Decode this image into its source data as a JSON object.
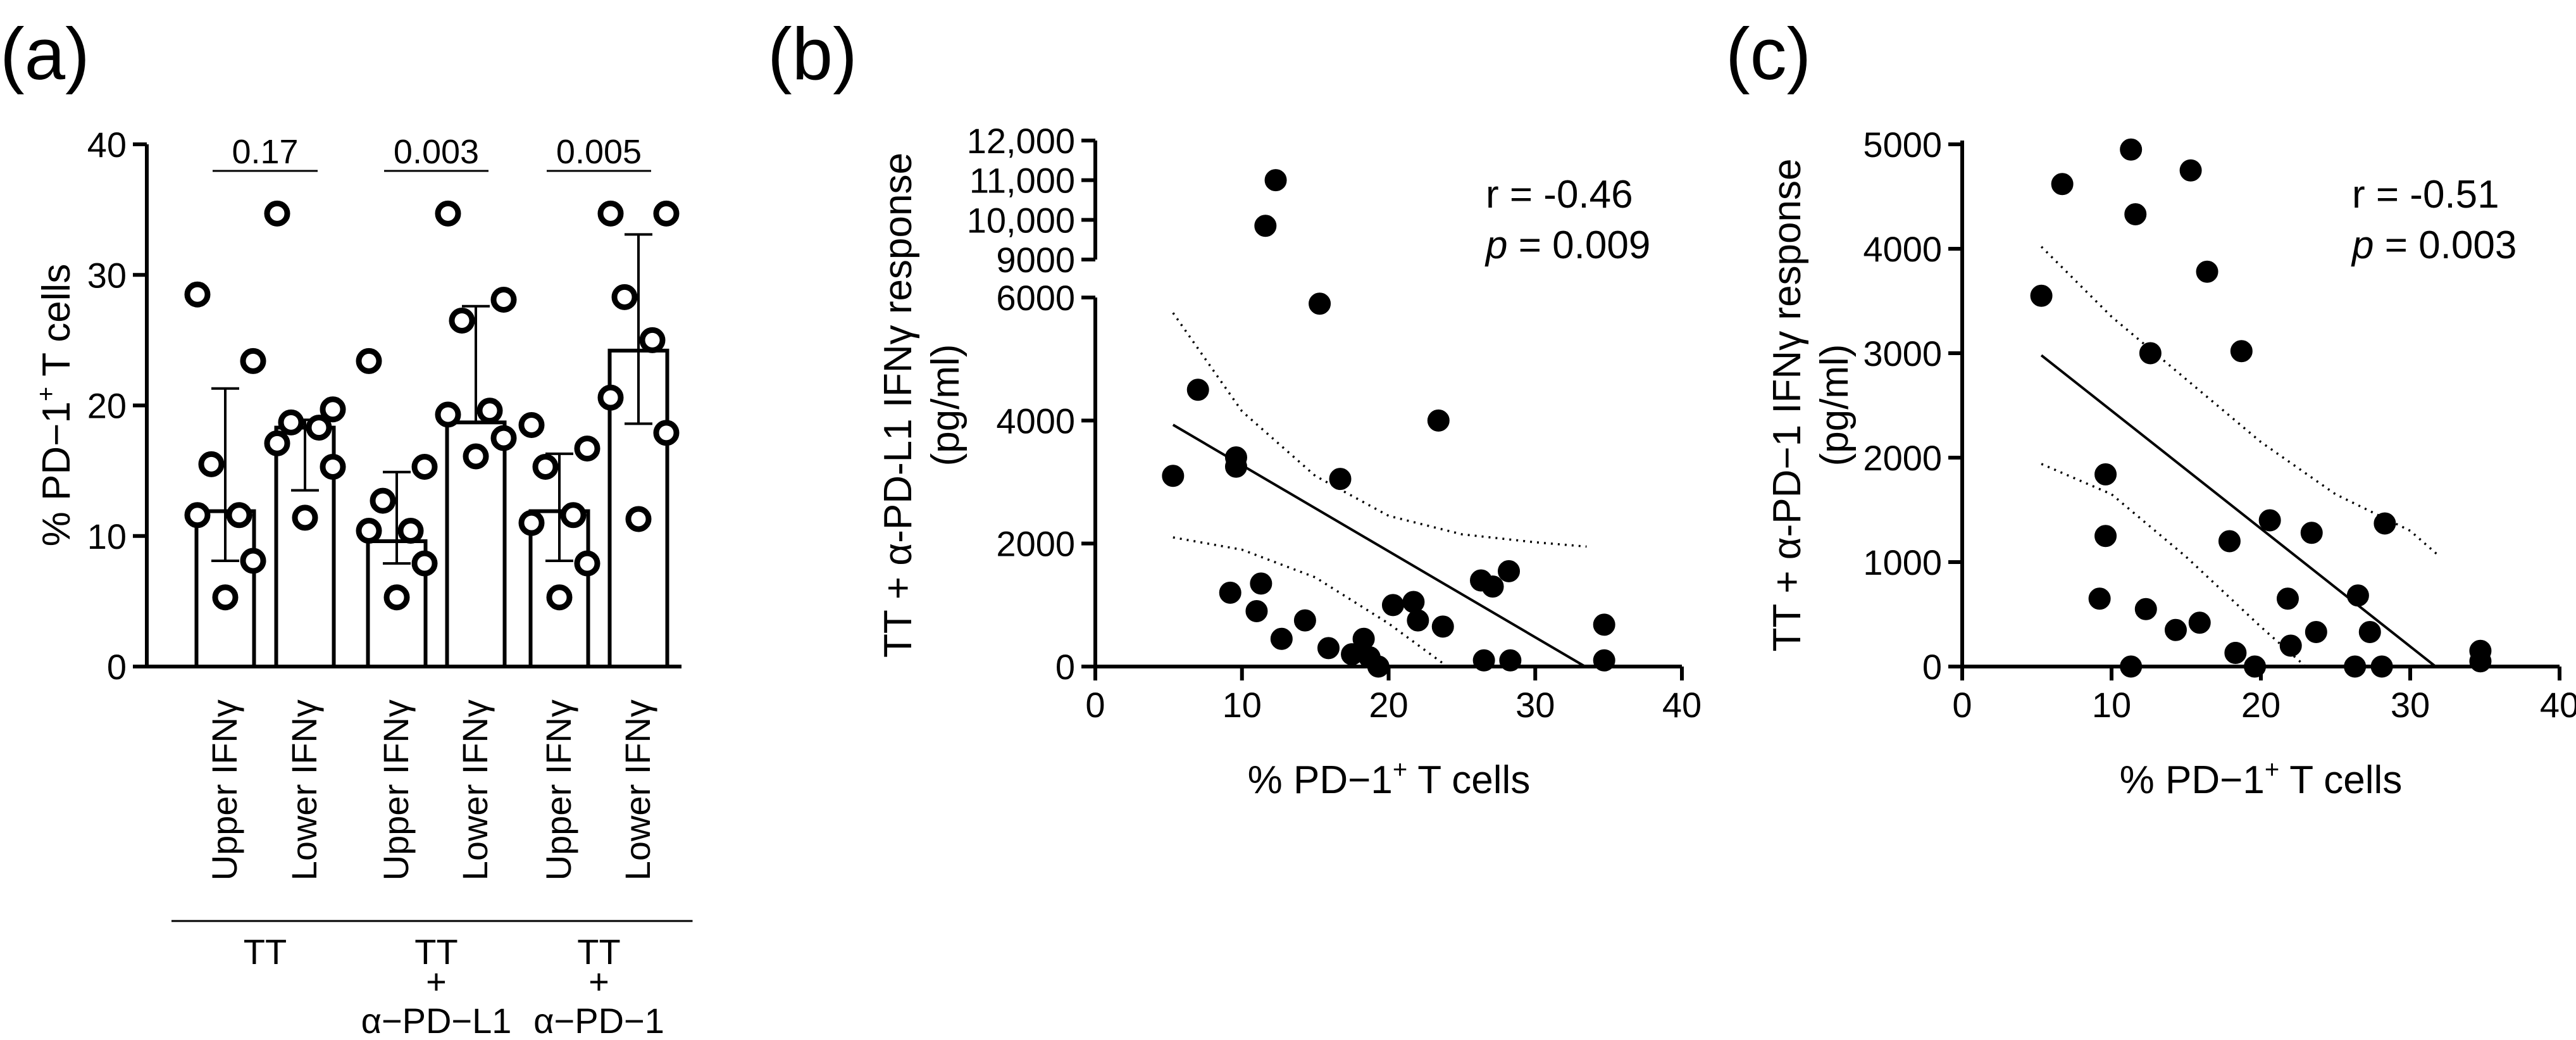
{
  "chart_data": [
    {
      "panel": "(a)",
      "type": "bar",
      "ylabel_pre": "% PD−1",
      "ylabel_sup": "+",
      "ylabel_post": " T cells",
      "ylim": [
        0,
        40
      ],
      "yticks": [
        0,
        10,
        20,
        30,
        40
      ],
      "bars": [
        {
          "label": "Upper IFNγ",
          "mean": 11.9,
          "sd_low": 8.1,
          "sd_high": 21.3,
          "points": [
            28.5,
            23.4,
            15.5,
            11.6,
            11.6,
            8.1,
            5.3
          ]
        },
        {
          "label": "Lower IFNγ",
          "mean": 18.3,
          "sd_low": 13.5,
          "sd_high": 18.9,
          "points": [
            34.7,
            19.7,
            18.7,
            18.3,
            17.1,
            15.3,
            11.4
          ]
        },
        {
          "label": "Upper IFNγ",
          "mean": 9.6,
          "sd_low": 7.9,
          "sd_high": 14.9,
          "points": [
            23.4,
            15.3,
            12.7,
            10.4,
            10.4,
            7.9,
            5.3
          ]
        },
        {
          "label": "Lower IFNγ",
          "mean": 18.7,
          "sd_low": 18.7,
          "sd_high": 27.6,
          "points": [
            34.7,
            28.1,
            26.5,
            19.6,
            19.3,
            17.5,
            16.1
          ]
        },
        {
          "label": "Upper IFNγ",
          "mean": 11.9,
          "sd_low": 8.1,
          "sd_high": 16.3,
          "points": [
            18.5,
            16.7,
            15.3,
            11.6,
            11.0,
            7.9,
            5.3
          ]
        },
        {
          "label": "Lower IFNγ",
          "mean": 24.2,
          "sd_low": 18.6,
          "sd_high": 33.1,
          "points": [
            34.7,
            34.7,
            28.3,
            25.0,
            20.6,
            17.9,
            11.3
          ]
        }
      ],
      "groups": [
        {
          "lines": [
            "TT"
          ]
        },
        {
          "lines": [
            "TT",
            "+",
            "α−PD−L1"
          ]
        },
        {
          "lines": [
            "TT",
            "+",
            "α−PD−1"
          ]
        }
      ],
      "comparisons": [
        "0.17",
        "0.003",
        "0.005"
      ]
    },
    {
      "panel": "(b)",
      "type": "scatter",
      "xlabel_pre": "% PD−1",
      "xlabel_sup": "+",
      "xlabel_post": " T cells",
      "ylabel_line1": "TT + α-PD-L1 IFNγ response",
      "ylabel_line2": "(pg/ml)",
      "xlim": [
        0,
        40
      ],
      "xticks": [
        0,
        10,
        20,
        30,
        40
      ],
      "ylim_lower": [
        0,
        6000
      ],
      "yticks_lower": [
        "0",
        "2000",
        "4000",
        "6000"
      ],
      "ylim_upper": [
        9000,
        12000
      ],
      "yticks_upper": [
        "9000",
        "10,000",
        "11,000",
        "12,000"
      ],
      "r_text": "r = -0.46",
      "p_label": "p",
      "p_value": " = 0.009",
      "points": [
        [
          5.3,
          3100
        ],
        [
          7.0,
          4500
        ],
        [
          9.2,
          1200
        ],
        [
          9.6,
          3400
        ],
        [
          9.6,
          3250
        ],
        [
          11.0,
          900
        ],
        [
          11.3,
          1350
        ],
        [
          11.6,
          9850
        ],
        [
          12.3,
          11000
        ],
        [
          12.7,
          450
        ],
        [
          14.3,
          750
        ],
        [
          15.3,
          5900
        ],
        [
          15.9,
          300
        ],
        [
          16.7,
          3050
        ],
        [
          17.5,
          200
        ],
        [
          18.3,
          450
        ],
        [
          18.7,
          150
        ],
        [
          19.3,
          0
        ],
        [
          20.3,
          1000
        ],
        [
          21.7,
          1050
        ],
        [
          22.0,
          750
        ],
        [
          23.4,
          4000
        ],
        [
          23.7,
          650
        ],
        [
          26.3,
          1400
        ],
        [
          26.5,
          100
        ],
        [
          27.1,
          1300
        ],
        [
          28.2,
          1550
        ],
        [
          28.3,
          100
        ],
        [
          34.7,
          680
        ],
        [
          34.7,
          100
        ]
      ],
      "fit": {
        "x": [
          5.3,
          33.4
        ],
        "y": [
          3930,
          0
        ]
      },
      "ci_upper": [
        [
          5.3,
          5750
        ],
        [
          10,
          4150
        ],
        [
          15,
          3100
        ],
        [
          20,
          2450
        ],
        [
          25,
          2150
        ],
        [
          30,
          2020
        ],
        [
          33.5,
          1950
        ]
      ],
      "ci_lower": [
        [
          5.3,
          2100
        ],
        [
          10,
          1900
        ],
        [
          15,
          1450
        ],
        [
          20,
          700
        ],
        [
          24,
          0
        ]
      ]
    },
    {
      "panel": "(c)",
      "type": "scatter",
      "xlabel_pre": "% PD−1",
      "xlabel_sup": "+",
      "xlabel_post": " T cells",
      "ylabel_line1": "TT + α-PD−1 IFNγ response",
      "ylabel_line2": "(pg/ml)",
      "xlim": [
        0,
        40
      ],
      "xticks": [
        0,
        10,
        20,
        30,
        40
      ],
      "ylim": [
        0,
        5000
      ],
      "yticks": [
        0,
        1000,
        2000,
        3000,
        4000,
        5000
      ],
      "r_text": "r = -0.51",
      "p_label": "p",
      "p_value": " = 0.003",
      "points": [
        [
          5.3,
          3550
        ],
        [
          6.7,
          4620
        ],
        [
          9.2,
          650
        ],
        [
          9.6,
          1840
        ],
        [
          9.6,
          1250
        ],
        [
          11.3,
          4950
        ],
        [
          11.3,
          0
        ],
        [
          11.6,
          4330
        ],
        [
          12.3,
          550
        ],
        [
          12.6,
          3000
        ],
        [
          14.3,
          350
        ],
        [
          15.3,
          4750
        ],
        [
          15.9,
          420
        ],
        [
          16.4,
          3780
        ],
        [
          17.9,
          1200
        ],
        [
          18.3,
          130
        ],
        [
          18.7,
          3020
        ],
        [
          19.6,
          0
        ],
        [
          20.6,
          1400
        ],
        [
          21.8,
          650
        ],
        [
          22.0,
          200
        ],
        [
          23.4,
          1280
        ],
        [
          23.7,
          330
        ],
        [
          26.3,
          0
        ],
        [
          26.5,
          680
        ],
        [
          27.3,
          330
        ],
        [
          28.1,
          0
        ],
        [
          28.3,
          1370
        ],
        [
          34.7,
          150
        ],
        [
          34.7,
          50
        ]
      ],
      "fit": {
        "x": [
          5.3,
          31.7
        ],
        "y": [
          2980,
          0
        ]
      },
      "ci_upper": [
        [
          5.3,
          4020
        ],
        [
          10,
          3350
        ],
        [
          15,
          2750
        ],
        [
          20,
          2150
        ],
        [
          25,
          1650
        ],
        [
          30,
          1300
        ],
        [
          32,
          1050
        ]
      ],
      "ci_lower": [
        [
          5.3,
          1940
        ],
        [
          10,
          1650
        ],
        [
          15,
          1050
        ],
        [
          20,
          380
        ],
        [
          23,
          0
        ]
      ]
    }
  ]
}
